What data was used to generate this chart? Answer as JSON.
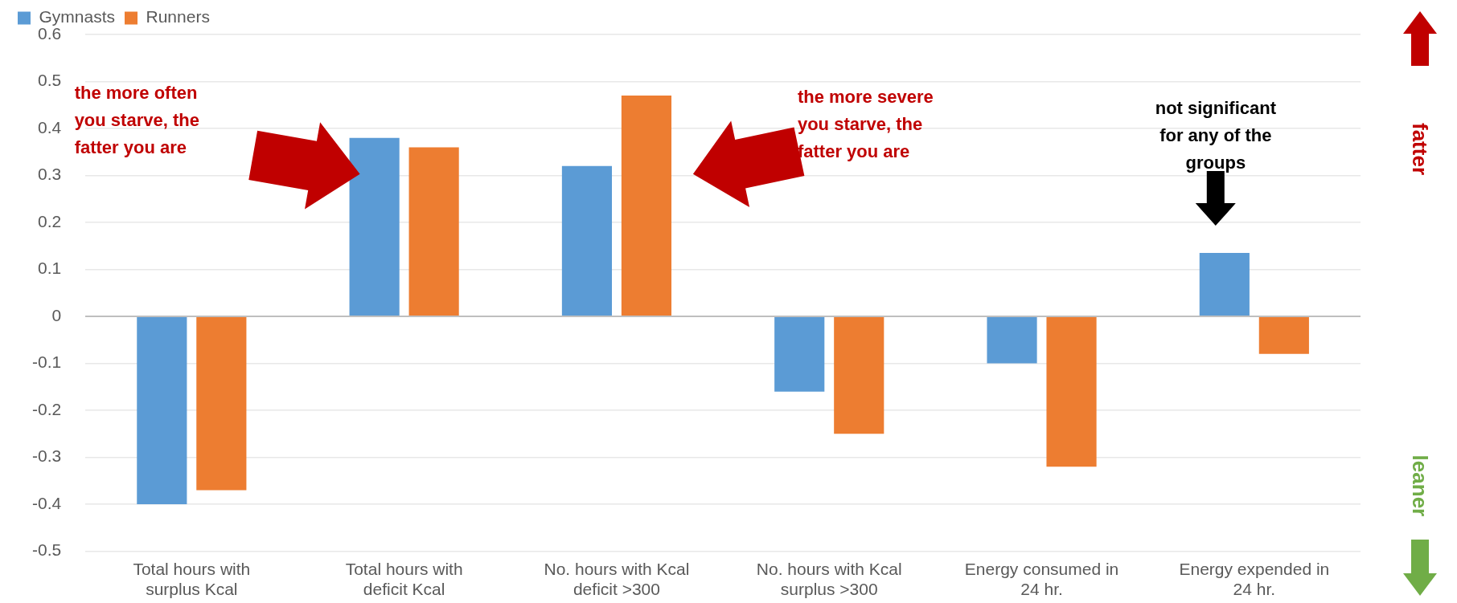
{
  "chart_data": {
    "type": "bar",
    "categories": [
      "Total hours with surplus Kcal",
      "Total hours with deficit Kcal",
      "No. hours with Kcal deficit >300",
      "No. hours with Kcal surplus >300",
      "Energy consumed in 24 hr.",
      "Energy expended in 24 hr."
    ],
    "series": [
      {
        "name": "Gymnasts",
        "color": "#5b9bd5",
        "values": [
          -0.4,
          0.38,
          0.32,
          -0.16,
          -0.1,
          0.135
        ]
      },
      {
        "name": "Runners",
        "color": "#ed7d31",
        "values": [
          -0.37,
          0.36,
          0.47,
          -0.25,
          -0.32,
          -0.08
        ]
      }
    ],
    "ylim": [
      -0.5,
      0.6
    ],
    "yticks": [
      -0.5,
      -0.4,
      -0.3,
      -0.2,
      -0.1,
      0,
      0.1,
      0.2,
      0.3,
      0.4,
      0.5,
      0.6
    ],
    "grid": "y",
    "legend": "top left",
    "annotations": [
      "the more often you starve, the fatter you are",
      "the more severe you starve, the fatter you are",
      "not significant for any of the groups",
      "fatter",
      "leaner"
    ]
  }
}
